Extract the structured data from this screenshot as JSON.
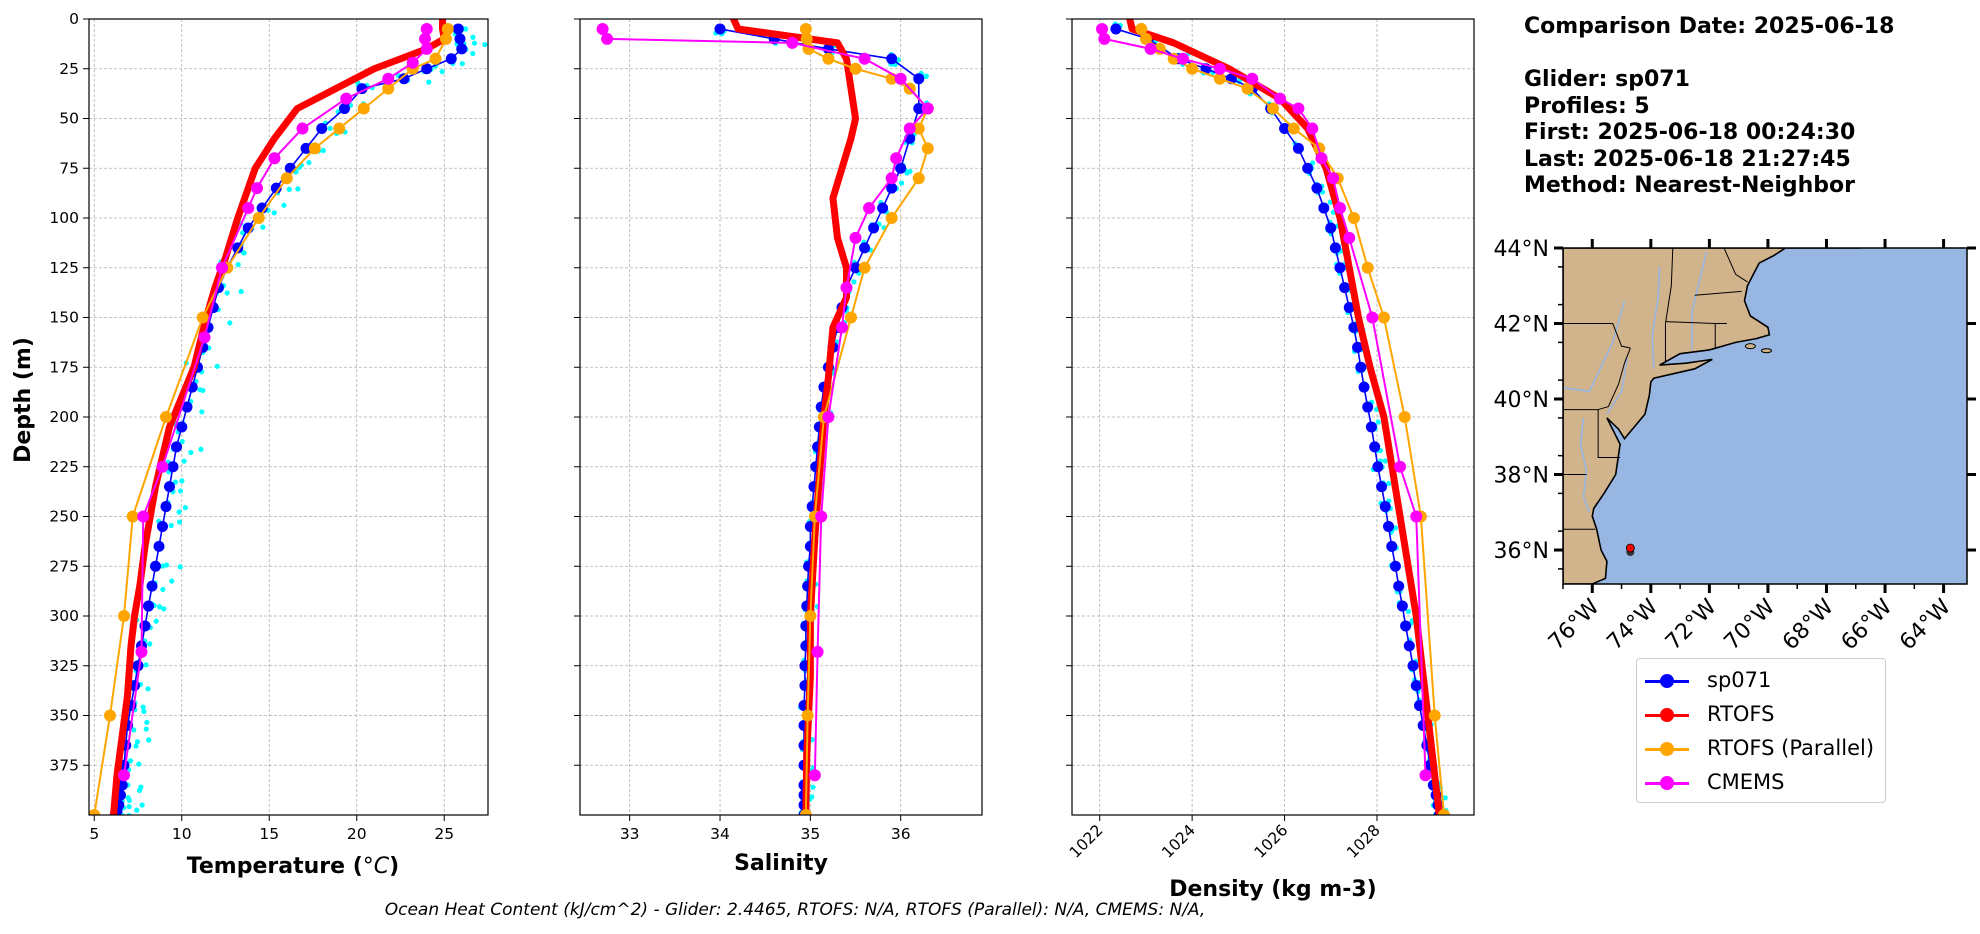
{
  "info": {
    "comparison_date": "Comparison Date: 2025-06-18",
    "glider": "Glider: sp071",
    "profiles": "Profiles: 5",
    "first": "First: 2025-06-18 00:24:30",
    "last": "Last: 2025-06-18 21:27:45",
    "method": "Method: Nearest-Neighbor"
  },
  "footer": "Ocean Heat Content (kJ/cm^2) - Glider: 2.4465,  RTOFS: N/A,  RTOFS (Parallel): N/A,  CMEMS: N/A,",
  "colors": {
    "sp071": "#0000ff",
    "rtofs": "#ff0000",
    "rtofs_parallel": "#ffa500",
    "cmems": "#ff00ff",
    "glider_raw": "#00ffff",
    "land": "#d2b48c",
    "ocean": "#97b6e1"
  },
  "legend": [
    {
      "key": "sp071",
      "label": "sp071"
    },
    {
      "key": "rtofs",
      "label": "RTOFS"
    },
    {
      "key": "rtofs_parallel",
      "label": "RTOFS (Parallel)"
    },
    {
      "key": "cmems",
      "label": "CMEMS"
    }
  ],
  "map": {
    "lat_ticks": [
      "44°N",
      "42°N",
      "40°N",
      "38°N",
      "36°N"
    ],
    "lon_ticks": [
      "76°W",
      "74°W",
      "72°W",
      "70°W",
      "68°W",
      "66°W",
      "64°W"
    ],
    "glider_position": {
      "lon": -74.7,
      "lat": 36.0
    }
  },
  "chart_data": [
    {
      "type": "line",
      "xlabel": "Temperature (°C)",
      "ylabel": "Depth (m)",
      "xlim": [
        4.7,
        27.5
      ],
      "ylim": [
        400,
        0
      ],
      "x_ticks": [
        5,
        10,
        15,
        20,
        25
      ],
      "y_ticks": [
        0,
        25,
        50,
        75,
        100,
        125,
        150,
        175,
        200,
        225,
        250,
        275,
        300,
        325,
        350,
        375
      ],
      "grid": true,
      "series": [
        {
          "name": "sp071",
          "key": "sp071",
          "marker_size": 5.5,
          "width": 1.6,
          "x": [
            25.8,
            25.9,
            26.0,
            25.4,
            24.0,
            22.7,
            20.3,
            19.3,
            18.0,
            17.1,
            16.2,
            15.4,
            14.6,
            13.8,
            13.2,
            12.6,
            12.1,
            11.8,
            11.5,
            11.2,
            10.9,
            10.6,
            10.3,
            10.0,
            9.7,
            9.5,
            9.3,
            9.1,
            8.9,
            8.7,
            8.5,
            8.3,
            8.1,
            7.9,
            7.7,
            7.5,
            7.3,
            7.1,
            6.9,
            6.8,
            6.7,
            6.6,
            6.5,
            6.4,
            6.3,
            6.2
          ],
          "y": [
            5,
            10,
            15,
            20,
            25,
            30,
            35,
            45,
            55,
            65,
            75,
            85,
            95,
            105,
            115,
            125,
            135,
            145,
            155,
            165,
            175,
            185,
            195,
            205,
            215,
            225,
            235,
            245,
            255,
            265,
            275,
            285,
            295,
            305,
            315,
            325,
            335,
            345,
            355,
            365,
            375,
            385,
            390,
            395,
            398,
            400
          ]
        },
        {
          "name": "RTOFS",
          "key": "rtofs",
          "marker_size": 0,
          "width": 7,
          "x": [
            24.9,
            24.9,
            25.0,
            24.0,
            21.0,
            18.8,
            16.6,
            15.3,
            14.2,
            13.6,
            13.2,
            12.5,
            11.9,
            11.4,
            10.7,
            10.0,
            9.3,
            8.9,
            8.5,
            8.2,
            7.9,
            7.6,
            7.3,
            7.1,
            6.9,
            6.6,
            6.3,
            6.1
          ],
          "y": [
            0,
            5,
            10,
            15,
            25,
            35,
            45,
            60,
            75,
            90,
            100,
            120,
            135,
            150,
            175,
            190,
            205,
            220,
            235,
            250,
            265,
            285,
            300,
            315,
            340,
            360,
            380,
            400
          ]
        },
        {
          "name": "RTOFS (Parallel)",
          "key": "rtofs_parallel",
          "marker_size": 6,
          "x": [
            25.2,
            25.1,
            24.5,
            23.2,
            21.8,
            20.4,
            19.0,
            17.6,
            16.0,
            14.4,
            12.6,
            11.2,
            9.1,
            7.2,
            6.7,
            5.9,
            5.0
          ],
          "y": [
            5,
            10,
            20,
            25,
            35,
            45,
            55,
            65,
            80,
            100,
            125,
            150,
            200,
            250,
            300,
            350,
            400
          ]
        },
        {
          "name": "CMEMS",
          "key": "cmems",
          "marker_size": 6,
          "x": [
            24.0,
            23.9,
            24.0,
            23.2,
            21.8,
            19.4,
            16.9,
            15.3,
            14.3,
            13.8,
            12.3,
            11.3,
            8.9,
            7.8,
            7.7,
            6.7
          ],
          "y": [
            5,
            10,
            15,
            22,
            30,
            40,
            55,
            70,
            85,
            95,
            125,
            160,
            225,
            250,
            318,
            380
          ]
        }
      ]
    },
    {
      "type": "line",
      "xlabel": "Salinity",
      "ylabel": "",
      "xlim": [
        32.45,
        36.9
      ],
      "ylim": [
        400,
        0
      ],
      "x_ticks": [
        33,
        34,
        35,
        36
      ],
      "y_ticks": [
        0,
        25,
        50,
        75,
        100,
        125,
        150,
        175,
        200,
        225,
        250,
        275,
        300,
        325,
        350,
        375
      ],
      "grid": true,
      "series": [
        {
          "name": "sp071",
          "key": "sp071",
          "marker_size": 5.5,
          "width": 1.6,
          "x": [
            34.0,
            34.6,
            35.2,
            35.9,
            36.2,
            36.2,
            36.1,
            36.0,
            35.9,
            35.8,
            35.7,
            35.6,
            35.5,
            35.4,
            35.35,
            35.3,
            35.25,
            35.2,
            35.15,
            35.12,
            35.1,
            35.08,
            35.06,
            35.04,
            35.02,
            35.0,
            35.0,
            34.98,
            34.97,
            34.96,
            34.95,
            34.95,
            34.94,
            34.94,
            34.93,
            34.93,
            34.93,
            34.93,
            34.93,
            34.93,
            34.93,
            34.93
          ],
          "y": [
            5,
            10,
            15,
            20,
            30,
            45,
            60,
            75,
            85,
            95,
            105,
            115,
            125,
            135,
            145,
            155,
            165,
            175,
            185,
            195,
            205,
            215,
            225,
            235,
            245,
            255,
            265,
            275,
            285,
            295,
            305,
            315,
            325,
            335,
            345,
            355,
            365,
            375,
            385,
            390,
            395,
            400
          ]
        },
        {
          "name": "RTOFS",
          "key": "rtofs",
          "marker_size": 0,
          "width": 7,
          "x": [
            34.15,
            34.2,
            35.3,
            35.4,
            35.45,
            35.5,
            35.45,
            35.35,
            35.25,
            35.3,
            35.4,
            35.4,
            35.25,
            35.2,
            35.15,
            35.1,
            35.05,
            35.0,
            35.0,
            34.96,
            34.95
          ],
          "y": [
            0,
            5,
            12,
            20,
            35,
            50,
            60,
            75,
            90,
            110,
            125,
            140,
            155,
            180,
            200,
            230,
            260,
            300,
            330,
            370,
            400
          ]
        },
        {
          "name": "RTOFS (Parallel)",
          "key": "rtofs_parallel",
          "marker_size": 6,
          "x": [
            34.95,
            34.96,
            34.98,
            35.2,
            35.5,
            35.9,
            36.1,
            36.3,
            36.2,
            36.3,
            36.2,
            35.9,
            35.6,
            35.45,
            35.15,
            35.05,
            35.0,
            34.97,
            34.95
          ],
          "y": [
            5,
            10,
            15,
            20,
            25,
            30,
            35,
            45,
            55,
            65,
            80,
            100,
            125,
            150,
            200,
            250,
            300,
            350,
            400
          ]
        },
        {
          "name": "CMEMS",
          "key": "cmems",
          "marker_size": 6,
          "x": [
            32.7,
            32.75,
            34.8,
            35.6,
            36.0,
            36.3,
            36.1,
            35.95,
            35.9,
            35.65,
            35.5,
            35.4,
            35.35,
            35.2,
            35.12,
            35.08,
            35.05
          ],
          "y": [
            5,
            10,
            12,
            20,
            30,
            45,
            55,
            70,
            80,
            95,
            110,
            135,
            155,
            200,
            250,
            318,
            380
          ]
        }
      ]
    },
    {
      "type": "line",
      "xlabel": "Density (kg m-3)",
      "ylabel": "",
      "xlim": [
        1021.4,
        1030.1
      ],
      "ylim": [
        400,
        0
      ],
      "x_ticks": [
        1022,
        1024,
        1026,
        1028
      ],
      "y_ticks": [
        0,
        25,
        50,
        75,
        100,
        125,
        150,
        175,
        200,
        225,
        250,
        275,
        300,
        325,
        350,
        375
      ],
      "grid": true,
      "series": [
        {
          "name": "sp071",
          "key": "sp071",
          "marker_size": 5.5,
          "width": 1.6,
          "x": [
            1022.35,
            1023.05,
            1023.7,
            1024.3,
            1024.85,
            1025.3,
            1025.7,
            1026.0,
            1026.3,
            1026.5,
            1026.7,
            1026.85,
            1027.0,
            1027.1,
            1027.2,
            1027.3,
            1027.4,
            1027.5,
            1027.58,
            1027.65,
            1027.72,
            1027.8,
            1027.88,
            1027.95,
            1028.02,
            1028.1,
            1028.18,
            1028.25,
            1028.32,
            1028.4,
            1028.47,
            1028.55,
            1028.62,
            1028.7,
            1028.78,
            1028.85,
            1028.92,
            1029.0,
            1029.08,
            1029.15,
            1029.22,
            1029.28,
            1029.32,
            1029.35
          ],
          "y": [
            5,
            10,
            20,
            25,
            30,
            35,
            45,
            55,
            65,
            75,
            85,
            95,
            105,
            115,
            125,
            135,
            145,
            155,
            165,
            175,
            185,
            195,
            205,
            215,
            225,
            235,
            245,
            255,
            265,
            275,
            285,
            295,
            305,
            315,
            325,
            335,
            345,
            355,
            365,
            375,
            385,
            390,
            395,
            400
          ]
        },
        {
          "name": "RTOFS",
          "key": "rtofs",
          "marker_size": 0,
          "width": 7,
          "x": [
            1022.65,
            1022.7,
            1023.6,
            1024.8,
            1025.9,
            1026.5,
            1026.9,
            1027.2,
            1027.4,
            1027.6,
            1027.85,
            1028.15,
            1028.5,
            1028.85,
            1029.1,
            1029.35
          ],
          "y": [
            0,
            5,
            12,
            25,
            40,
            55,
            75,
            100,
            125,
            150,
            175,
            200,
            250,
            300,
            350,
            400
          ]
        },
        {
          "name": "RTOFS (Parallel)",
          "key": "rtofs_parallel",
          "marker_size": 6,
          "x": [
            1022.9,
            1023.0,
            1023.3,
            1023.6,
            1024.0,
            1024.6,
            1025.2,
            1025.75,
            1026.2,
            1026.75,
            1027.15,
            1027.5,
            1027.8,
            1028.15,
            1028.6,
            1028.95,
            1029.25,
            1029.45
          ],
          "y": [
            5,
            10,
            15,
            20,
            25,
            30,
            35,
            45,
            55,
            65,
            80,
            100,
            125,
            150,
            200,
            250,
            350,
            400
          ]
        },
        {
          "name": "CMEMS",
          "key": "cmems",
          "marker_size": 6,
          "x": [
            1022.05,
            1022.1,
            1023.1,
            1023.8,
            1024.6,
            1025.3,
            1025.9,
            1026.3,
            1026.6,
            1026.8,
            1027.05,
            1027.2,
            1027.4,
            1027.9,
            1028.5,
            1028.85,
            1029.05
          ],
          "y": [
            5,
            10,
            15,
            20,
            25,
            30,
            40,
            45,
            55,
            70,
            80,
            95,
            110,
            150,
            225,
            250,
            380
          ]
        }
      ]
    }
  ]
}
